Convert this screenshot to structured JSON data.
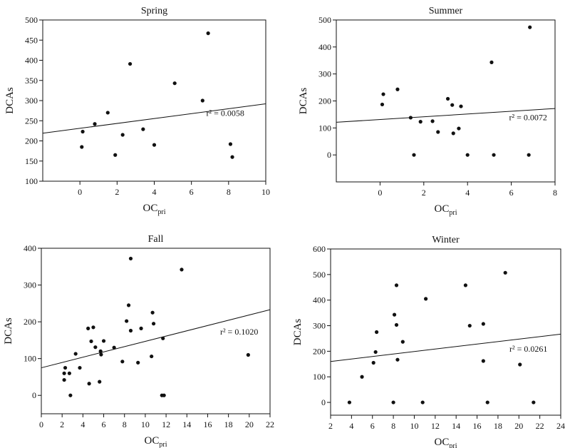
{
  "figure": {
    "background": "#ffffff",
    "ink": "#111111"
  },
  "chart_data": [
    {
      "type": "scatter",
      "title": "Spring",
      "xlabel": "OC",
      "xlabel_sub": "pri",
      "ylabel": "DCAs",
      "xlim": [
        -2,
        10
      ],
      "ylim": [
        100,
        500
      ],
      "xticks": [
        0,
        2,
        4,
        6,
        8,
        10
      ],
      "yticks": [
        100,
        150,
        200,
        250,
        300,
        350,
        400,
        450,
        500
      ],
      "points": [
        {
          "x": 0.15,
          "y": 223
        },
        {
          "x": 0.1,
          "y": 185
        },
        {
          "x": 0.8,
          "y": 242
        },
        {
          "x": 1.5,
          "y": 270
        },
        {
          "x": 1.9,
          "y": 165
        },
        {
          "x": 2.3,
          "y": 215
        },
        {
          "x": 2.7,
          "y": 391
        },
        {
          "x": 3.4,
          "y": 229
        },
        {
          "x": 4.0,
          "y": 190
        },
        {
          "x": 5.1,
          "y": 343
        },
        {
          "x": 6.6,
          "y": 300
        },
        {
          "x": 6.9,
          "y": 467
        },
        {
          "x": 8.1,
          "y": 192
        },
        {
          "x": 8.2,
          "y": 160
        }
      ],
      "trend": {
        "x0": -2,
        "y0": 219,
        "x1": 10,
        "y1": 292
      },
      "annotation": {
        "text": "r² = 0.0058",
        "x": 6.8,
        "y": 262
      }
    },
    {
      "type": "scatter",
      "title": "Summer",
      "xlabel": "OC",
      "xlabel_sub": "pri",
      "ylabel": "DCAs",
      "xlim": [
        -2,
        8
      ],
      "ylim": [
        -100,
        500
      ],
      "xticks": [
        0,
        2,
        4,
        6,
        8
      ],
      "yticks": [
        0,
        100,
        200,
        300,
        400,
        500
      ],
      "points": [
        {
          "x": 0.15,
          "y": 225
        },
        {
          "x": 0.1,
          "y": 187
        },
        {
          "x": 0.8,
          "y": 243
        },
        {
          "x": 1.4,
          "y": 138
        },
        {
          "x": 1.55,
          "y": 0
        },
        {
          "x": 1.85,
          "y": 123
        },
        {
          "x": 2.4,
          "y": 125
        },
        {
          "x": 2.65,
          "y": 85
        },
        {
          "x": 3.1,
          "y": 208
        },
        {
          "x": 3.3,
          "y": 185
        },
        {
          "x": 3.35,
          "y": 80
        },
        {
          "x": 3.6,
          "y": 98
        },
        {
          "x": 3.7,
          "y": 180
        },
        {
          "x": 4.0,
          "y": 0
        },
        {
          "x": 5.1,
          "y": 343
        },
        {
          "x": 5.2,
          "y": 0
        },
        {
          "x": 6.8,
          "y": 0
        },
        {
          "x": 6.85,
          "y": 473
        }
      ],
      "trend": {
        "x0": -2,
        "y0": 121,
        "x1": 8,
        "y1": 172
      },
      "annotation": {
        "text": "r² = 0.0072",
        "x": 5.9,
        "y": 128
      }
    },
    {
      "type": "scatter",
      "title": "Fall",
      "xlabel": "OC",
      "xlabel_sub": "pri",
      "ylabel": "DCAs",
      "xlim": [
        0,
        22
      ],
      "ylim": [
        -50,
        400
      ],
      "xticks": [
        0,
        2,
        4,
        6,
        8,
        10,
        12,
        14,
        16,
        18,
        20,
        22
      ],
      "yticks": [
        0,
        100,
        200,
        300,
        400
      ],
      "points": [
        {
          "x": 2.2,
          "y": 60
        },
        {
          "x": 2.2,
          "y": 42
        },
        {
          "x": 2.3,
          "y": 75
        },
        {
          "x": 2.7,
          "y": 60
        },
        {
          "x": 2.8,
          "y": 0
        },
        {
          "x": 3.3,
          "y": 113
        },
        {
          "x": 3.7,
          "y": 75
        },
        {
          "x": 4.5,
          "y": 182
        },
        {
          "x": 4.6,
          "y": 32
        },
        {
          "x": 4.8,
          "y": 147
        },
        {
          "x": 5.0,
          "y": 185
        },
        {
          "x": 5.2,
          "y": 131
        },
        {
          "x": 5.6,
          "y": 37
        },
        {
          "x": 5.7,
          "y": 120
        },
        {
          "x": 5.75,
          "y": 111
        },
        {
          "x": 6.0,
          "y": 148
        },
        {
          "x": 7.0,
          "y": 130
        },
        {
          "x": 7.8,
          "y": 92
        },
        {
          "x": 8.2,
          "y": 202
        },
        {
          "x": 8.4,
          "y": 245
        },
        {
          "x": 8.6,
          "y": 372
        },
        {
          "x": 8.6,
          "y": 176
        },
        {
          "x": 9.3,
          "y": 89
        },
        {
          "x": 9.6,
          "y": 182
        },
        {
          "x": 10.6,
          "y": 106
        },
        {
          "x": 10.7,
          "y": 225
        },
        {
          "x": 10.8,
          "y": 195
        },
        {
          "x": 11.6,
          "y": 0
        },
        {
          "x": 11.7,
          "y": 155
        },
        {
          "x": 11.8,
          "y": 0
        },
        {
          "x": 13.5,
          "y": 342
        },
        {
          "x": 19.9,
          "y": 110
        }
      ],
      "trend": {
        "x0": 0,
        "y0": 75,
        "x1": 22,
        "y1": 233
      },
      "annotation": {
        "text": "r² = 0.1020",
        "x": 17.2,
        "y": 165
      }
    },
    {
      "type": "scatter",
      "title": "Winter",
      "xlabel": "OC",
      "xlabel_sub": "pri",
      "ylabel": "DCAs",
      "xlim": [
        2,
        24
      ],
      "ylim": [
        -50,
        600
      ],
      "xticks": [
        2,
        4,
        6,
        8,
        10,
        12,
        14,
        16,
        18,
        20,
        22,
        24
      ],
      "yticks": [
        0,
        100,
        200,
        300,
        400,
        500,
        600
      ],
      "points": [
        {
          "x": 3.8,
          "y": 0
        },
        {
          "x": 5.0,
          "y": 100
        },
        {
          "x": 6.1,
          "y": 155
        },
        {
          "x": 6.3,
          "y": 197
        },
        {
          "x": 6.4,
          "y": 275
        },
        {
          "x": 8.0,
          "y": 0
        },
        {
          "x": 8.1,
          "y": 343
        },
        {
          "x": 8.3,
          "y": 458
        },
        {
          "x": 8.3,
          "y": 303
        },
        {
          "x": 8.4,
          "y": 167
        },
        {
          "x": 8.9,
          "y": 237
        },
        {
          "x": 10.8,
          "y": 0
        },
        {
          "x": 11.1,
          "y": 405
        },
        {
          "x": 14.9,
          "y": 458
        },
        {
          "x": 15.3,
          "y": 300
        },
        {
          "x": 16.6,
          "y": 307
        },
        {
          "x": 16.6,
          "y": 162
        },
        {
          "x": 17.0,
          "y": 0
        },
        {
          "x": 18.7,
          "y": 507
        },
        {
          "x": 20.1,
          "y": 148
        },
        {
          "x": 21.4,
          "y": 0
        }
      ],
      "trend": {
        "x0": 2,
        "y0": 160,
        "x1": 24,
        "y1": 267
      },
      "annotation": {
        "text": "r² = 0.0261",
        "x": 19.1,
        "y": 198
      }
    }
  ]
}
